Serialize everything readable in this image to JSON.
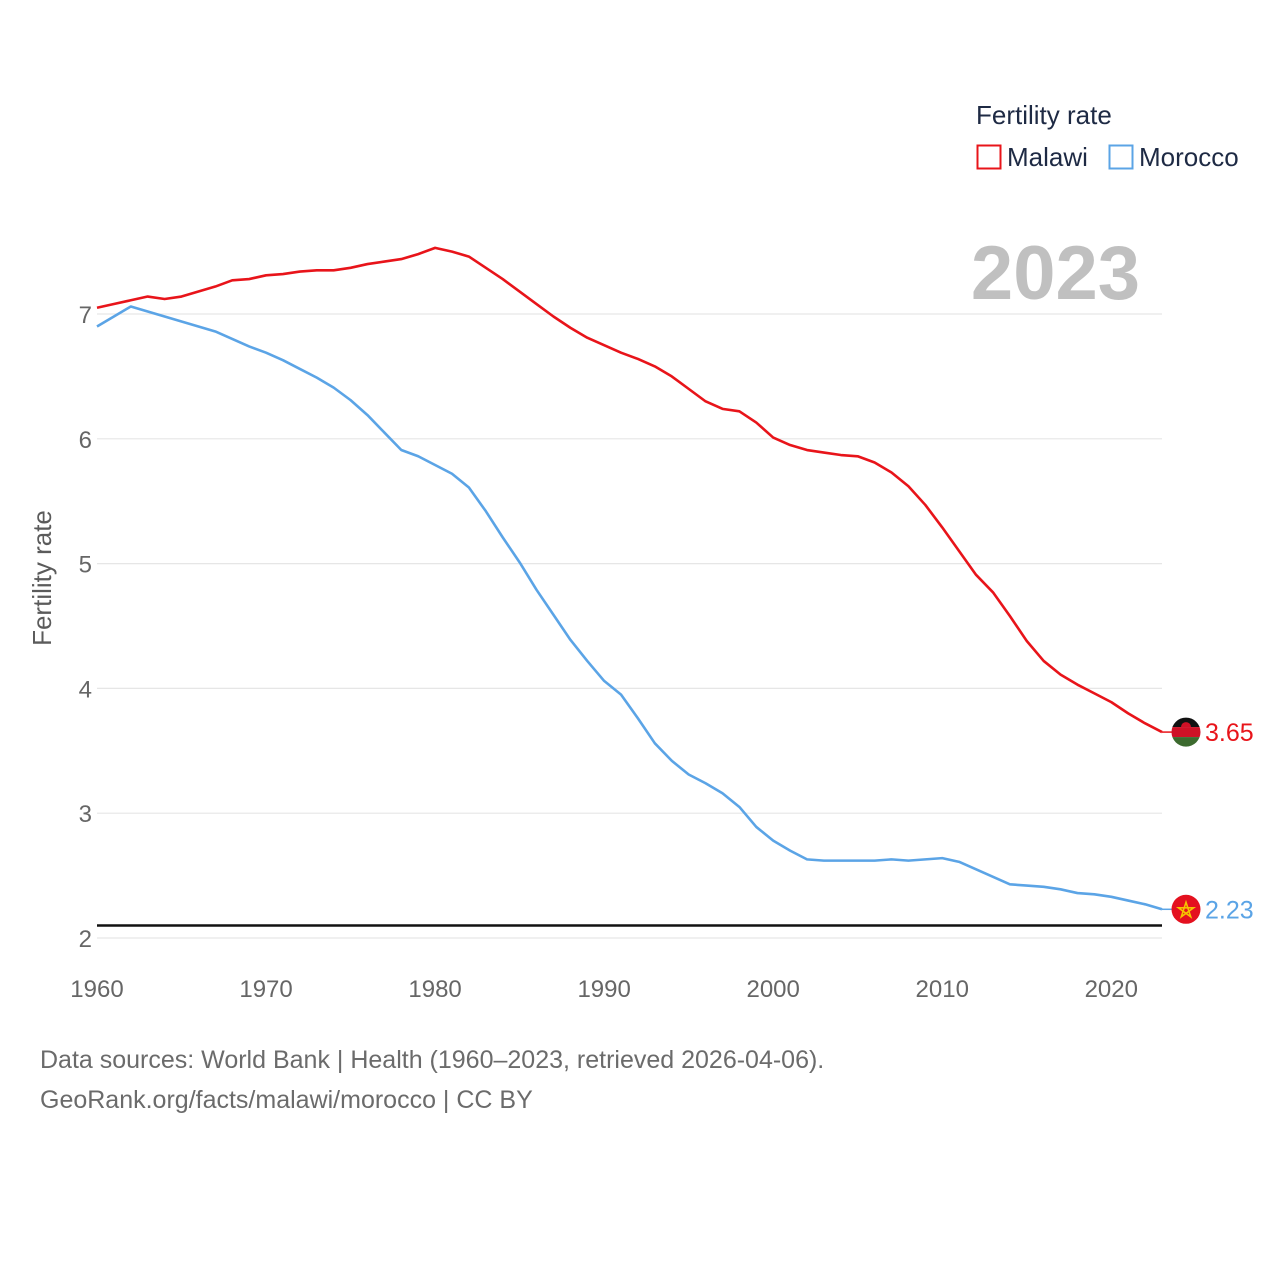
{
  "chart_data": {
    "type": "line",
    "legend_title": "Fertility rate",
    "ylabel": "Fertility rate",
    "xlabel": "",
    "year_label": "2023",
    "xlim": [
      1960,
      2023
    ],
    "ylim": [
      1.95,
      7.55
    ],
    "yticks": [
      2,
      3,
      4,
      5,
      6,
      7
    ],
    "xticks": [
      1960,
      1970,
      1980,
      1990,
      2000,
      2010,
      2020
    ],
    "reference_line": 2.1,
    "x": [
      1960,
      1961,
      1962,
      1963,
      1964,
      1965,
      1966,
      1967,
      1968,
      1969,
      1970,
      1971,
      1972,
      1973,
      1974,
      1975,
      1976,
      1977,
      1978,
      1979,
      1980,
      1981,
      1982,
      1983,
      1984,
      1985,
      1986,
      1987,
      1988,
      1989,
      1990,
      1991,
      1992,
      1993,
      1994,
      1995,
      1996,
      1997,
      1998,
      1999,
      2000,
      2001,
      2002,
      2003,
      2004,
      2005,
      2006,
      2007,
      2008,
      2009,
      2010,
      2011,
      2012,
      2013,
      2014,
      2015,
      2016,
      2017,
      2018,
      2019,
      2020,
      2021,
      2022,
      2023
    ],
    "series": [
      {
        "name": "Malawi",
        "color": "#e8141a",
        "end_label": "3.65",
        "flag": "malawi",
        "values": [
          7.05,
          7.08,
          7.11,
          7.14,
          7.12,
          7.14,
          7.18,
          7.22,
          7.27,
          7.28,
          7.31,
          7.32,
          7.34,
          7.35,
          7.35,
          7.37,
          7.4,
          7.42,
          7.44,
          7.48,
          7.53,
          7.5,
          7.46,
          7.37,
          7.28,
          7.18,
          7.08,
          6.98,
          6.89,
          6.81,
          6.75,
          6.69,
          6.64,
          6.58,
          6.5,
          6.4,
          6.3,
          6.24,
          6.22,
          6.13,
          6.01,
          5.95,
          5.91,
          5.89,
          5.87,
          5.86,
          5.81,
          5.73,
          5.62,
          5.47,
          5.29,
          5.1,
          4.91,
          4.77,
          4.58,
          4.38,
          4.22,
          4.11,
          4.03,
          3.96,
          3.89,
          3.8,
          3.72,
          3.65
        ]
      },
      {
        "name": "Morocco",
        "color": "#5ba4e6",
        "end_label": "2.23",
        "flag": "morocco",
        "values": [
          6.9,
          6.98,
          7.06,
          7.02,
          6.98,
          6.94,
          6.9,
          6.86,
          6.8,
          6.74,
          6.69,
          6.63,
          6.56,
          6.49,
          6.41,
          6.31,
          6.19,
          6.05,
          5.91,
          5.86,
          5.79,
          5.72,
          5.61,
          5.42,
          5.21,
          5.01,
          4.79,
          4.59,
          4.39,
          4.22,
          4.06,
          3.95,
          3.76,
          3.56,
          3.42,
          3.31,
          3.24,
          3.16,
          3.05,
          2.89,
          2.78,
          2.7,
          2.63,
          2.62,
          2.62,
          2.62,
          2.62,
          2.63,
          2.62,
          2.63,
          2.64,
          2.61,
          2.55,
          2.49,
          2.43,
          2.42,
          2.41,
          2.39,
          2.36,
          2.35,
          2.33,
          2.3,
          2.27,
          2.23
        ]
      }
    ]
  },
  "footer": {
    "line1": "Data sources: World Bank | Health (1960–2023, retrieved 2026-04-06).",
    "line2": "GeoRank.org/facts/malawi/morocco | CC BY"
  }
}
